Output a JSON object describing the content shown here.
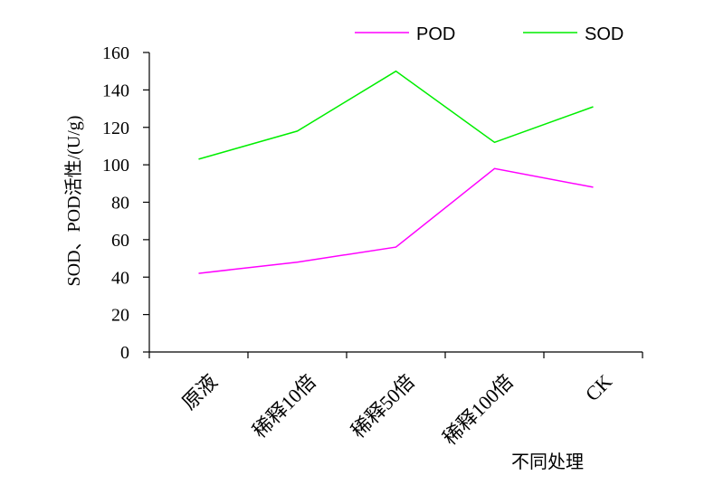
{
  "chart_data": {
    "type": "line",
    "title": "",
    "xlabel": "不同处理",
    "ylabel": "SOD、POD活性/(U/g)",
    "categories": [
      "原液",
      "稀释10倍",
      "稀释50倍",
      "稀释100倍",
      "CK"
    ],
    "ylim": [
      0,
      160
    ],
    "yticks": [
      "0",
      "20",
      "40",
      "60",
      "80",
      "100",
      "120",
      "140",
      "160"
    ],
    "grid": false,
    "legend_position": "top-right",
    "series": [
      {
        "name": "POD",
        "color": "#ff00ff",
        "values": [
          42,
          48,
          56,
          98,
          88
        ]
      },
      {
        "name": "SOD",
        "color": "#00ee00",
        "values": [
          103,
          118,
          150,
          112,
          131
        ]
      }
    ]
  }
}
